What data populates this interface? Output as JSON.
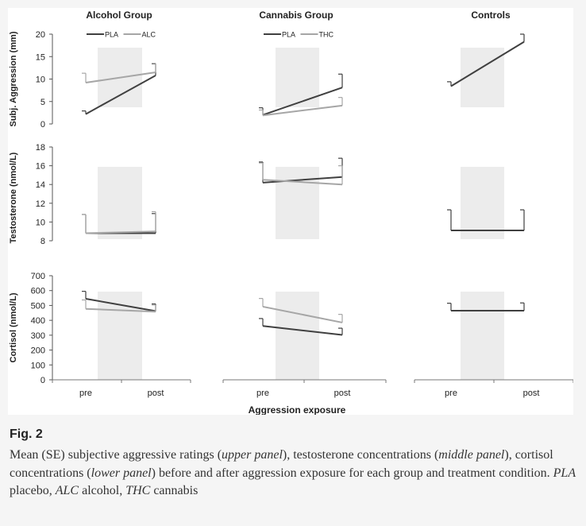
{
  "chart_data": {
    "type": "line",
    "group_titles": [
      "Alcohol Group",
      "Cannabis Group",
      "Controls"
    ],
    "x_categories": [
      "pre",
      "post"
    ],
    "xlabel": "Aggression exposure",
    "panels": [
      {
        "ylabel": "Subj. Aggression (mm)",
        "ylim": [
          0,
          20
        ],
        "yticks": [
          "0",
          "5",
          "10",
          "15",
          "20"
        ],
        "groups": [
          {
            "legend": true,
            "series": [
              {
                "name": "PLA",
                "color": "#404040",
                "values": [
                  2.2,
                  10.8
                ],
                "se": [
                  0.7,
                  2.6
                ]
              },
              {
                "name": "ALC",
                "color": "#a6a6a6",
                "values": [
                  9.2,
                  11.5
                ],
                "se": [
                  2.1,
                  2.0
                ]
              }
            ]
          },
          {
            "legend": true,
            "series": [
              {
                "name": "PLA",
                "color": "#404040",
                "values": [
                  2.0,
                  8.1
                ],
                "se": [
                  1.6,
                  3.0
                ]
              },
              {
                "name": "THC",
                "color": "#a6a6a6",
                "values": [
                  1.9,
                  4.1
                ],
                "se": [
                  1.2,
                  1.8
                ]
              }
            ]
          },
          {
            "legend": false,
            "series": [
              {
                "name": "",
                "color": "#404040",
                "values": [
                  8.4,
                  18.3
                ],
                "se": [
                  1.0,
                  1.7
                ]
              }
            ]
          }
        ]
      },
      {
        "ylabel": "Testosterone (nmol/L)",
        "ylim": [
          8,
          18
        ],
        "yticks": [
          "8",
          "10",
          "12",
          "14",
          "16",
          "18"
        ],
        "groups": [
          {
            "legend": false,
            "series": [
              {
                "name": "PLA",
                "color": "#404040",
                "values": [
                  8.8,
                  8.8
                ],
                "se": [
                  2.0,
                  2.1
                ]
              },
              {
                "name": "ALC",
                "color": "#a6a6a6",
                "values": [
                  8.8,
                  9.0
                ],
                "se": [
                  2.0,
                  2.1
                ]
              }
            ]
          },
          {
            "legend": false,
            "series": [
              {
                "name": "PLA",
                "color": "#404040",
                "values": [
                  14.2,
                  14.8
                ],
                "se": [
                  2.2,
                  2.0
                ]
              },
              {
                "name": "THC",
                "color": "#a6a6a6",
                "values": [
                  14.5,
                  14.0
                ],
                "se": [
                  1.8,
                  2.0
                ]
              }
            ]
          },
          {
            "legend": false,
            "series": [
              {
                "name": "",
                "color": "#404040",
                "values": [
                  9.1,
                  9.1
                ],
                "se": [
                  2.2,
                  2.2
                ]
              }
            ]
          }
        ]
      },
      {
        "ylabel": "Cortisol (nmol/L)",
        "ylim": [
          0,
          700
        ],
        "yticks": [
          "0",
          "100",
          "200",
          "300",
          "400",
          "500",
          "600",
          "700"
        ],
        "groups": [
          {
            "legend": false,
            "series": [
              {
                "name": "PLA",
                "color": "#404040",
                "values": [
                  545,
                  462
                ],
                "se": [
                  50,
                  48
                ]
              },
              {
                "name": "ALC",
                "color": "#a6a6a6",
                "values": [
                  477,
                  458
                ],
                "se": [
                  60,
                  45
                ]
              }
            ]
          },
          {
            "legend": false,
            "series": [
              {
                "name": "PLA",
                "color": "#404040",
                "values": [
                  362,
                  302
                ],
                "se": [
                  50,
                  45
                ]
              },
              {
                "name": "THC",
                "color": "#a6a6a6",
                "values": [
                  492,
                  385
                ],
                "se": [
                  55,
                  55
                ]
              }
            ]
          },
          {
            "legend": false,
            "series": [
              {
                "name": "",
                "color": "#404040",
                "values": [
                  465,
                  465
                ],
                "se": [
                  50,
                  52
                ]
              }
            ]
          }
        ]
      }
    ]
  },
  "caption": {
    "label": "Fig. 2",
    "t1": "Mean (SE) subjective aggressive ratings (",
    "t2": "upper panel",
    "t3": "), testosterone concentrations (",
    "t4": "middle panel",
    "t5": "), cortisol concentrations (",
    "t6": "lower panel",
    "t7": ") before and after aggression exposure for each group and treatment condition. ",
    "t8": "PLA",
    "t9": " placebo, ",
    "t10": "ALC",
    "t11": " alcohol, ",
    "t12": "THC",
    "t13": " cannabis"
  }
}
